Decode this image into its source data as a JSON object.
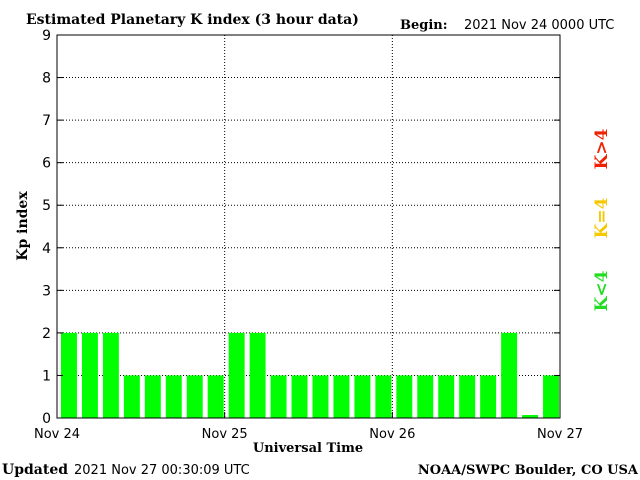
{
  "chart_data": {
    "type": "bar",
    "title": "Estimated Planetary K index (3 hour data)",
    "begin_label": "Begin:",
    "begin_value": "2021 Nov 24 0000 UTC",
    "ylabel": "Kp index",
    "xlabel": "Universal Time",
    "ylim": [
      0,
      9
    ],
    "yticks": [
      "0",
      "1",
      "2",
      "3",
      "4",
      "5",
      "6",
      "7",
      "8",
      "9"
    ],
    "day_labels": [
      "Nov 24",
      "Nov 25",
      "Nov 26",
      "Nov 27"
    ],
    "values": [
      2,
      2,
      2,
      1,
      1,
      1,
      1,
      1,
      2,
      2,
      1,
      1,
      1,
      1,
      1,
      1,
      1,
      1,
      1,
      1,
      1,
      2,
      0.07,
      1
    ],
    "bar_color": "#00ff00",
    "grid": "dotted",
    "legend": {
      "low": {
        "text": "K<4",
        "color": "#22dd22"
      },
      "mid": {
        "text": "K=4",
        "color": "#f5c800"
      },
      "high": {
        "text": "K>4",
        "color": "#ee2200"
      }
    }
  },
  "footer": {
    "updated_label": "Updated",
    "updated_value": "2021 Nov 27 00:30:09 UTC",
    "source": "NOAA/SWPC Boulder, CO USA"
  }
}
